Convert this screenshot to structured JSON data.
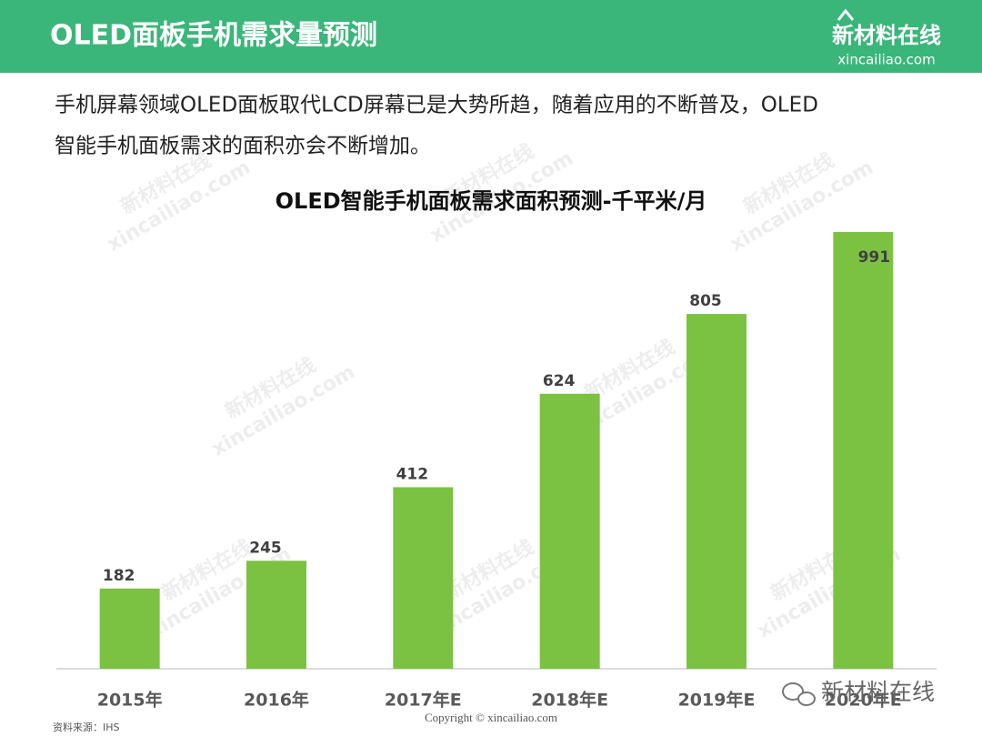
{
  "header": {
    "title": "OLED面板手机需求量预测",
    "logo_name": "新材料在线",
    "logo_url": "xincailiao.com"
  },
  "description": [
    "手机屏幕领域OLED面板取代LCD屏幕已是大势所趋，随着应用的不断普及，OLED",
    "智能手机面板需求的面积亦会不断增加。"
  ],
  "chart_data": {
    "type": "bar",
    "title": "OLED智能手机面板需求面积预测-千平米/月",
    "categories": [
      "2015年",
      "2016年",
      "2017年E",
      "2018年E",
      "2019年E",
      "2020年E"
    ],
    "values": [
      182,
      245,
      412,
      624,
      805,
      991
    ],
    "color": "#7cc242"
  },
  "footer": {
    "source": "资料来源：IHS",
    "copyright": "Copyright © xincailiao.com",
    "wechat_account": "新材料在线"
  },
  "watermark": {
    "name": "新材料在线",
    "url": "xincailiao.com"
  }
}
